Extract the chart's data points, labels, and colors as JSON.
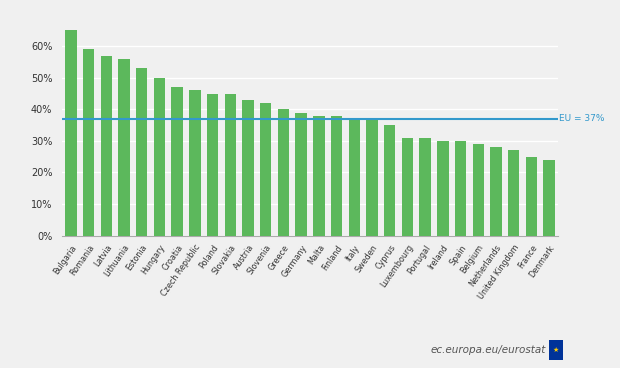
{
  "categories": [
    "Bulgaria",
    "Romania",
    "Latvia",
    "Lithuania",
    "Estonia",
    "Hungary",
    "Croatia",
    "Czech Republic",
    "Poland",
    "Slovakia",
    "Austria",
    "Slovenia",
    "Greece",
    "Germany",
    "Malta",
    "Finland",
    "Italy",
    "Sweden",
    "Cyprus",
    "Luxembourg",
    "Portugal",
    "Ireland",
    "Spain",
    "Belgium",
    "Netherlands",
    "United Kingdom",
    "France",
    "Denmark"
  ],
  "values": [
    65,
    59,
    57,
    56,
    53,
    50,
    47,
    46,
    45,
    45,
    43,
    42,
    40,
    39,
    38,
    38,
    37,
    37,
    35,
    31,
    31,
    30,
    30,
    29,
    28,
    27,
    25,
    24
  ],
  "bar_color": "#5cb85c",
  "eu_line": 37,
  "eu_label": "EU = 37%",
  "ylim": [
    0,
    70
  ],
  "ytick_vals": [
    0,
    10,
    20,
    30,
    40,
    50,
    60
  ],
  "ytick_labels": [
    "0%",
    "10%",
    "20%",
    "30%",
    "40%",
    "50%",
    "60%"
  ],
  "eu_line_color": "#3399cc",
  "background_color": "#f0f0f0",
  "plot_bg_color": "#f0f0f0",
  "grid_color": "#ffffff",
  "watermark": "ec.europa.eu/eurostat",
  "watermark_color": "#555555",
  "eu_label_color": "#3399cc"
}
